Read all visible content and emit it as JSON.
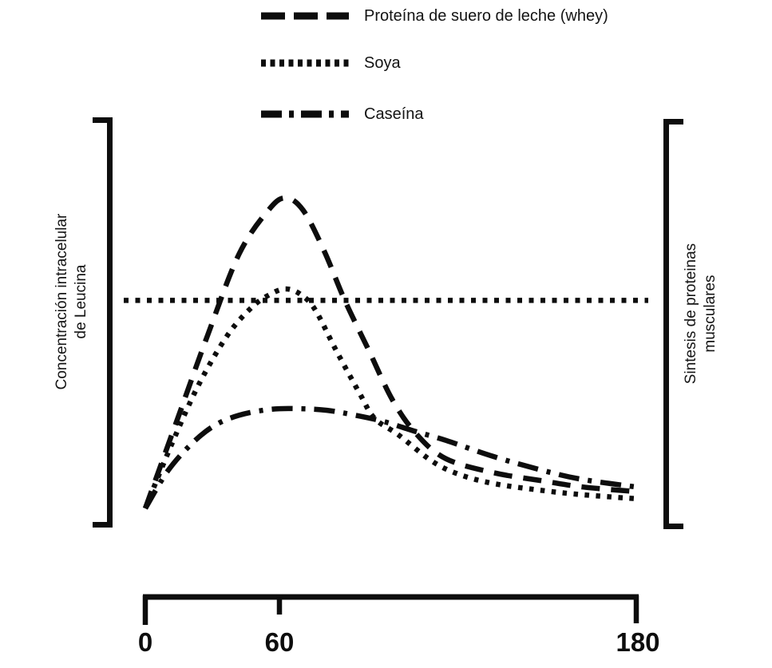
{
  "legend": {
    "items": [
      {
        "label": "Proteína de suero de leche (whey)",
        "style": "dashed"
      },
      {
        "label": "Soya",
        "style": "dotted"
      },
      {
        "label": "Caseína",
        "style": "dashdot"
      }
    ]
  },
  "axes": {
    "left_label_line1": "Concentración intracelular",
    "left_label_line2": "de Leucina",
    "right_label_line1": "Sintesis de proteinas",
    "right_label_line2": "musculares",
    "x_tick_labels": [
      "0",
      "60",
      "180"
    ]
  },
  "chart_data": {
    "type": "line",
    "title": "",
    "xlabel": "",
    "ylabel_left": "Concentración intracelular de Leucina",
    "ylabel_right": "Sintesis de proteinas musculares",
    "x_axis": {
      "range": [
        0,
        180
      ],
      "ticks": [
        0,
        60,
        180
      ]
    },
    "y_axis": {
      "range": [
        0,
        1
      ],
      "note": "relative scale, no numeric ticks"
    },
    "reference_line": {
      "style": "dotted",
      "y": 0.67,
      "orientation": "horizontal"
    },
    "series": [
      {
        "name": "Proteína de suero de leche (whey)",
        "style": "dashed",
        "points": [
          [
            0,
            0
          ],
          [
            14,
            0.28
          ],
          [
            28,
            0.56
          ],
          [
            42,
            0.82
          ],
          [
            55,
            0.96
          ],
          [
            62,
            1.0
          ],
          [
            68,
            0.96
          ],
          [
            75,
            0.83
          ],
          [
            82,
            0.67
          ],
          [
            90,
            0.51
          ],
          [
            98,
            0.35
          ],
          [
            106,
            0.24
          ],
          [
            116,
            0.16
          ],
          [
            132,
            0.115
          ],
          [
            149,
            0.088
          ],
          [
            162,
            0.069
          ],
          [
            180,
            0.054
          ]
        ]
      },
      {
        "name": "Soya",
        "style": "dotted",
        "points": [
          [
            0,
            0
          ],
          [
            12,
            0.21
          ],
          [
            24,
            0.4
          ],
          [
            37,
            0.56
          ],
          [
            48,
            0.65
          ],
          [
            56,
            0.69
          ],
          [
            62,
            0.707
          ],
          [
            67,
            0.69
          ],
          [
            72,
            0.64
          ],
          [
            79,
            0.51
          ],
          [
            87,
            0.37
          ],
          [
            92,
            0.29
          ],
          [
            100,
            0.237
          ],
          [
            111,
            0.154
          ],
          [
            120,
            0.111
          ],
          [
            132,
            0.08
          ],
          [
            149,
            0.057
          ],
          [
            162,
            0.044
          ],
          [
            180,
            0.031
          ]
        ]
      },
      {
        "name": "Caseína",
        "style": "dashdot",
        "points": [
          [
            0,
            0
          ],
          [
            10,
            0.12
          ],
          [
            21,
            0.21
          ],
          [
            31,
            0.267
          ],
          [
            42,
            0.3
          ],
          [
            56,
            0.319
          ],
          [
            67,
            0.321
          ],
          [
            76,
            0.316
          ],
          [
            85,
            0.301
          ],
          [
            95,
            0.28
          ],
          [
            106,
            0.247
          ],
          [
            116,
            0.219
          ],
          [
            132,
            0.167
          ],
          [
            149,
            0.121
          ],
          [
            162,
            0.093
          ],
          [
            180,
            0.069
          ]
        ]
      }
    ]
  }
}
